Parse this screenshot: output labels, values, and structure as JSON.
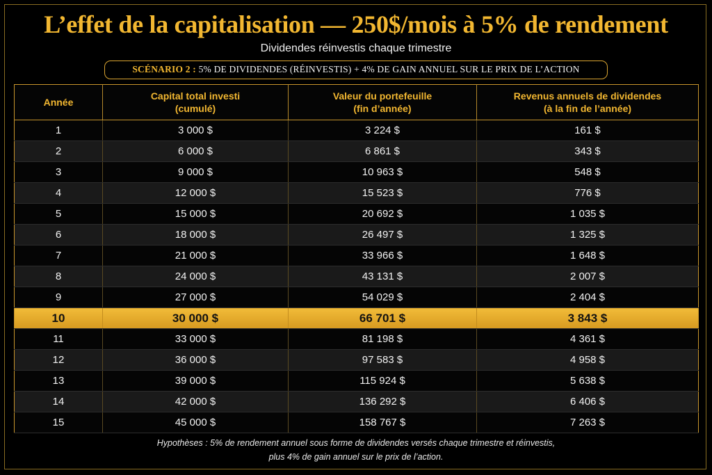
{
  "title": "L’effet de la capitalisation — 250$/mois à 5% de rendement",
  "subtitle": "Dividendes réinvestis chaque trimestre",
  "scenario": {
    "lead": "SCÉNARIO 2 :",
    "text": "5% DE DIVIDENDES (RÉINVESTIS) + 4% DE GAIN ANNUEL SUR LE PRIX DE L’ACTION"
  },
  "table": {
    "headers": [
      [
        "Année"
      ],
      [
        "Capital total investi",
        "(cumulé)"
      ],
      [
        "Valeur du portefeuille",
        "(fin d’année)"
      ],
      [
        "Revenus annuels de dividendes",
        "(à la fin de l’année)"
      ]
    ],
    "highlight_year": "10",
    "rows": [
      [
        "1",
        "3 000 $",
        "3 224 $",
        "161 $"
      ],
      [
        "2",
        "6 000 $",
        "6 861 $",
        "343 $"
      ],
      [
        "3",
        "9 000 $",
        "10 963 $",
        "548 $"
      ],
      [
        "4",
        "12 000 $",
        "15 523 $",
        "776 $"
      ],
      [
        "5",
        "15 000 $",
        "20 692 $",
        "1 035 $"
      ],
      [
        "6",
        "18 000 $",
        "26 497 $",
        "1 325 $"
      ],
      [
        "7",
        "21 000 $",
        "33 966 $",
        "1 648 $"
      ],
      [
        "8",
        "24 000 $",
        "43 131 $",
        "2 007 $"
      ],
      [
        "9",
        "27 000 $",
        "54 029 $",
        "2 404 $"
      ],
      [
        "10",
        "30 000 $",
        "66 701 $",
        "3 843 $"
      ],
      [
        "11",
        "33 000 $",
        "81 198 $",
        "4 361 $"
      ],
      [
        "12",
        "36 000 $",
        "97 583 $",
        "4 958 $"
      ],
      [
        "13",
        "39 000 $",
        "115 924 $",
        "5 638 $"
      ],
      [
        "14",
        "42 000 $",
        "136 292 $",
        "6 406 $"
      ],
      [
        "15",
        "45 000 $",
        "158 767 $",
        "7 263 $"
      ]
    ]
  },
  "footnote": {
    "line1": "Hypothèses : 5% de rendement annuel sous forme de dividendes versés chaque trimestre et réinvestis,",
    "line2": "plus 4% de gain annuel sur le prix de l’action."
  },
  "colors": {
    "accent_gold": "#f2b731",
    "highlight_row": "#e5ac2c",
    "background": "#000000"
  }
}
